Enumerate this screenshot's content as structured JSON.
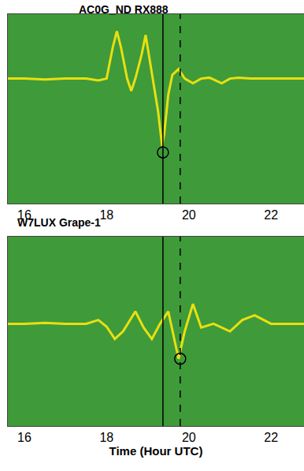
{
  "chart_data": [
    {
      "type": "line",
      "title": "AC0G_ND RX888",
      "xlim": [
        15.6,
        22.8
      ],
      "xticks": [
        16,
        18,
        20,
        22
      ],
      "ylim": [
        -1,
        1
      ],
      "tick_labels": "x",
      "series": [
        {
          "type": "line",
          "line_style": "solid",
          "color": "#e8e010",
          "x": [
            15.6,
            16,
            16.5,
            17,
            17.5,
            17.8,
            18.0,
            18.15,
            18.25,
            18.35,
            18.5,
            18.6,
            18.7,
            18.85,
            18.95,
            19.05,
            19.15,
            19.25,
            19.35,
            19.4,
            19.5,
            19.6,
            19.75,
            19.9,
            20.1,
            20.3,
            20.5,
            20.8,
            21.0,
            21.2,
            21.5,
            22,
            22.5,
            22.8
          ],
          "values": [
            0.32,
            0.32,
            0.31,
            0.32,
            0.32,
            0.3,
            0.32,
            0.65,
            0.82,
            0.65,
            0.32,
            0.19,
            0.32,
            0.57,
            0.78,
            0.52,
            0.27,
            -0.02,
            -0.39,
            -0.27,
            0.15,
            0.36,
            0.42,
            0.32,
            0.27,
            0.32,
            0.33,
            0.27,
            0.32,
            0.33,
            0.32,
            0.32,
            0.32,
            0.32
          ]
        },
        {
          "type": "line",
          "line_style": "solid",
          "color": "#000000",
          "x": [
            19.37,
            19.37
          ],
          "values": [
            -1,
            1
          ]
        },
        {
          "type": "line",
          "line_style": "dashed",
          "color": "#000000",
          "x": [
            19.79,
            19.79
          ],
          "values": [
            -1,
            1
          ]
        },
        {
          "type": "scatter",
          "marker": "circle-open",
          "color": "#000000",
          "x": [
            19.37
          ],
          "values": [
            -0.46
          ]
        }
      ]
    },
    {
      "type": "line",
      "title": "W7LUX Grape-1",
      "xlabel": "Time (Hour UTC)",
      "xlim": [
        15.6,
        22.8
      ],
      "xticks": [
        16,
        18,
        20,
        22
      ],
      "ylim": [
        -1,
        1
      ],
      "tick_labels": "x",
      "series": [
        {
          "type": "line",
          "line_style": "solid",
          "color": "#e8e010",
          "x": [
            15.6,
            16,
            16.5,
            17,
            17.5,
            17.8,
            18.0,
            18.2,
            18.4,
            18.7,
            18.9,
            19.1,
            19.3,
            19.5,
            19.75,
            19.9,
            20.1,
            20.3,
            20.6,
            21.0,
            21.3,
            21.6,
            22,
            22.4,
            22.8
          ],
          "values": [
            0.08,
            0.08,
            0.09,
            0.08,
            0.08,
            0.12,
            0.05,
            -0.08,
            0.0,
            0.21,
            0.04,
            -0.08,
            0.08,
            0.21,
            -0.29,
            0.0,
            0.29,
            0.04,
            0.08,
            0.0,
            0.12,
            0.17,
            0.08,
            0.08,
            0.08
          ]
        },
        {
          "type": "line",
          "line_style": "solid",
          "color": "#000000",
          "x": [
            19.37,
            19.37
          ],
          "values": [
            -1,
            1
          ]
        },
        {
          "type": "line",
          "line_style": "dashed",
          "color": "#000000",
          "x": [
            19.79,
            19.79
          ],
          "values": [
            -1,
            1
          ]
        },
        {
          "type": "scatter",
          "marker": "circle-open",
          "color": "#000000",
          "x": [
            19.79
          ],
          "values": [
            -0.29
          ]
        }
      ]
    }
  ]
}
